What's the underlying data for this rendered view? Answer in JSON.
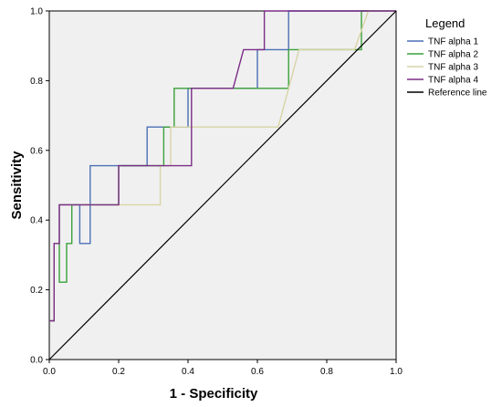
{
  "chart_data": {
    "type": "line",
    "title": "",
    "xlabel": "1 - Specificity",
    "ylabel": "Sensitivity",
    "xlim": [
      0,
      1
    ],
    "ylim": [
      0,
      1
    ],
    "xticks": [
      "0.0",
      "0.2",
      "0.4",
      "0.6",
      "0.8",
      "1.0"
    ],
    "yticks": [
      "0.0",
      "0.2",
      "0.4",
      "0.6",
      "0.8",
      "1.0"
    ],
    "grid": false,
    "background": "#f0f0f0",
    "legend": {
      "title": "Legend",
      "placement": "right"
    },
    "series": [
      {
        "name": "TNF alpha 1",
        "color": "#4b6fb5",
        "points": [
          [
            0,
            0.111
          ],
          [
            0.014,
            0.111
          ],
          [
            0.014,
            0.333
          ],
          [
            0.029,
            0.333
          ],
          [
            0.029,
            0.444
          ],
          [
            0.088,
            0.444
          ],
          [
            0.088,
            0.333
          ],
          [
            0.118,
            0.333
          ],
          [
            0.118,
            0.444
          ],
          [
            0.118,
            0.556
          ],
          [
            0.2,
            0.556
          ],
          [
            0.2,
            0.556
          ],
          [
            0.282,
            0.556
          ],
          [
            0.282,
            0.667
          ],
          [
            0.4,
            0.667
          ],
          [
            0.4,
            0.778
          ],
          [
            0.6,
            0.778
          ],
          [
            0.6,
            0.889
          ],
          [
            0.69,
            0.889
          ],
          [
            0.69,
            1
          ],
          [
            1,
            1
          ]
        ]
      },
      {
        "name": "TNF alpha 2",
        "color": "#3aa13a",
        "points": [
          [
            0,
            0.111
          ],
          [
            0.014,
            0.111
          ],
          [
            0.014,
            0.333
          ],
          [
            0.029,
            0.333
          ],
          [
            0.029,
            0.222
          ],
          [
            0.05,
            0.222
          ],
          [
            0.05,
            0.333
          ],
          [
            0.065,
            0.333
          ],
          [
            0.065,
            0.444
          ],
          [
            0.2,
            0.444
          ],
          [
            0.2,
            0.556
          ],
          [
            0.33,
            0.556
          ],
          [
            0.33,
            0.667
          ],
          [
            0.36,
            0.667
          ],
          [
            0.36,
            0.778
          ],
          [
            0.69,
            0.778
          ],
          [
            0.69,
            0.889
          ],
          [
            0.9,
            0.889
          ],
          [
            0.9,
            1
          ],
          [
            1,
            1
          ]
        ]
      },
      {
        "name": "TNF alpha 3",
        "color": "#d9d4a6",
        "points": [
          [
            0,
            0.111
          ],
          [
            0.014,
            0.111
          ],
          [
            0.014,
            0.333
          ],
          [
            0.029,
            0.333
          ],
          [
            0.029,
            0.444
          ],
          [
            0.2,
            0.444
          ],
          [
            0.32,
            0.444
          ],
          [
            0.32,
            0.556
          ],
          [
            0.35,
            0.556
          ],
          [
            0.35,
            0.667
          ],
          [
            0.42,
            0.667
          ],
          [
            0.42,
            0.667
          ],
          [
            0.66,
            0.667
          ],
          [
            0.72,
            0.889
          ],
          [
            0.88,
            0.889
          ],
          [
            0.92,
            1
          ],
          [
            1,
            1
          ]
        ]
      },
      {
        "name": "TNF alpha 4",
        "color": "#7b2d86",
        "points": [
          [
            0,
            0.111
          ],
          [
            0.014,
            0.111
          ],
          [
            0.014,
            0.333
          ],
          [
            0.029,
            0.333
          ],
          [
            0.029,
            0.444
          ],
          [
            0.2,
            0.444
          ],
          [
            0.2,
            0.556
          ],
          [
            0.41,
            0.556
          ],
          [
            0.41,
            0.778
          ],
          [
            0.53,
            0.778
          ],
          [
            0.56,
            0.889
          ],
          [
            0.62,
            0.889
          ],
          [
            0.62,
            1
          ],
          [
            1,
            1
          ]
        ]
      },
      {
        "name": "Reference line",
        "color": "#000000",
        "points": [
          [
            0,
            0
          ],
          [
            1,
            1
          ]
        ]
      }
    ]
  }
}
